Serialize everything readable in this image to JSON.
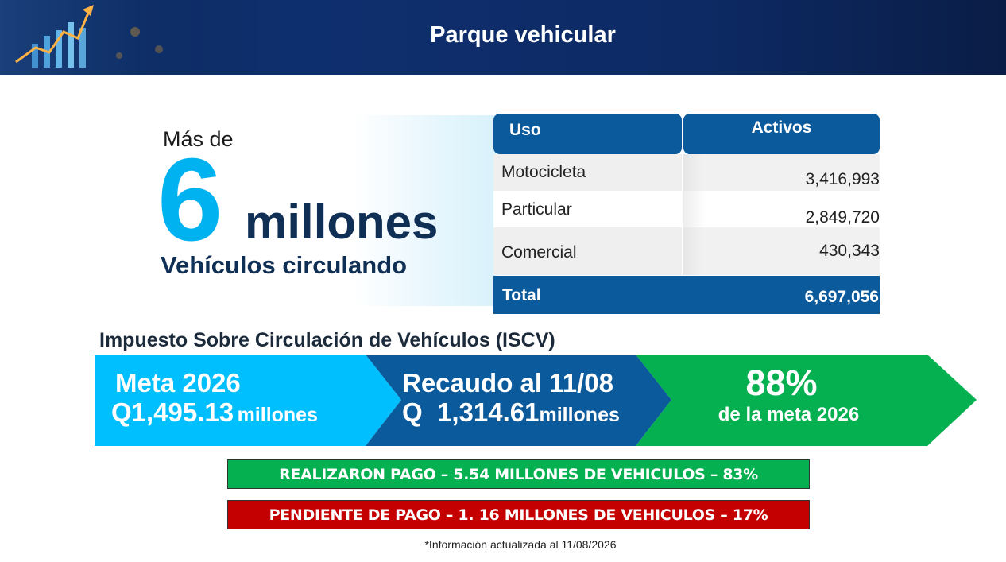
{
  "header": {
    "title": "Parque vehicular"
  },
  "stat": {
    "prefix": "Más de",
    "number": "6",
    "unit": "millones",
    "caption": "Vehículos circulando"
  },
  "table": {
    "headers": [
      "Uso",
      "Activos"
    ],
    "rows": [
      {
        "uso": "Motocicleta",
        "activos": "3,416,993"
      },
      {
        "uso": "Particular",
        "activos": "2,849,720"
      },
      {
        "uso": "Comercial",
        "activos": "430,343"
      }
    ],
    "total": {
      "label": "Total",
      "value": "6,697,056"
    }
  },
  "iscv": {
    "title": "Impuesto Sobre Circulación de Vehículos (ISCV)",
    "meta": {
      "line1": "Meta 2026",
      "amount": "Q1,495.13",
      "unit": "millones"
    },
    "recaudo": {
      "line1": "Recaudo al 11/08",
      "amount": "Q  1,314.61",
      "unit": "millones"
    },
    "porcentaje": {
      "value": "88%",
      "caption": "de la meta 2026"
    }
  },
  "bars": {
    "paid": "REALIZARON PAGO – 5.54 MILLONES DE VEHICULOS –  83%",
    "pending": "PENDIENTE DE PAGO – 1. 16 MILLONES DE VEHICULOS –  17%"
  },
  "footnote": "*Información actualizada al 11/08/2026",
  "colors": {
    "header_bg": "#0e2f6e",
    "accent_cyan": "#00b3f0",
    "navy_text": "#0f2f55",
    "table_blue": "#0b5a9c",
    "arrow_cyan": "#00bfff",
    "arrow_blue": "#0b5a9c",
    "arrow_green": "#05b050",
    "paid_green": "#05b050",
    "pending_red": "#c40000"
  }
}
